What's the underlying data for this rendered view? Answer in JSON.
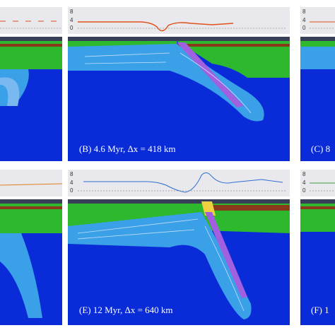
{
  "panels": [
    {
      "label": "(B) 4.6 Myr,  Δx = 418 km",
      "ticks": [
        "8",
        "4",
        "0"
      ]
    },
    {
      "label": "(C) 8",
      "ticks": [
        "8",
        "4",
        "0"
      ]
    },
    {
      "label": "(E) 12 Myr,  Δx = 640 km",
      "ticks": [
        "8",
        "4",
        "0"
      ]
    },
    {
      "label": "(F) 1",
      "ticks": [
        "8",
        "4",
        "0"
      ]
    }
  ]
}
